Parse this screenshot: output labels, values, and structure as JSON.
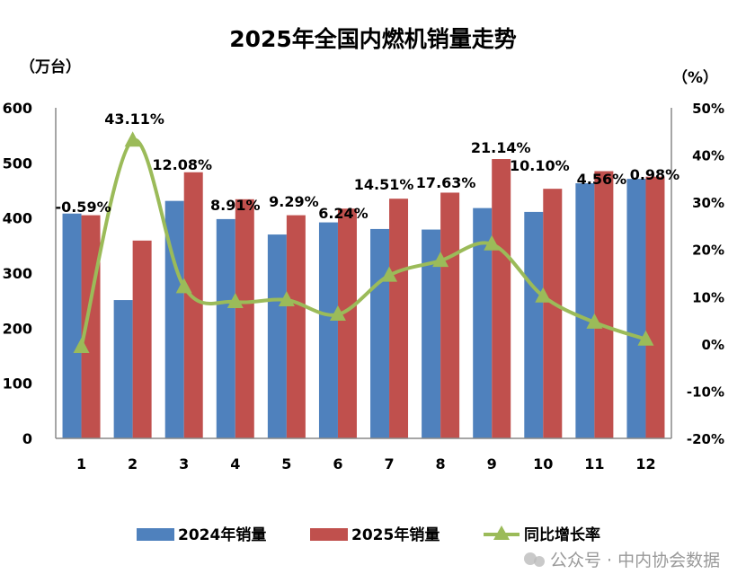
{
  "chart_data": {
    "type": "bar",
    "title": "2025年全国内燃机销量走势",
    "ylabel": "（万台）",
    "y2label": "（%）",
    "categories": [
      "1",
      "2",
      "3",
      "4",
      "5",
      "6",
      "7",
      "8",
      "9",
      "10",
      "11",
      "12"
    ],
    "ylim": [
      0,
      600
    ],
    "yticks": [
      "0",
      "100",
      "200",
      "300",
      "400",
      "500",
      "600"
    ],
    "y2lim": [
      -20,
      50
    ],
    "y2ticks": [
      "-20%",
      "-10%",
      "0%",
      "10%",
      "20%",
      "30%",
      "40%",
      "50%"
    ],
    "series": [
      {
        "name": "2024年销量",
        "type": "bar",
        "color": "#4f81bd",
        "values": [
          408,
          251,
          431,
          398,
          370,
          392,
          380,
          379,
          418,
          411,
          463,
          471
        ]
      },
      {
        "name": "2025年销量",
        "type": "bar",
        "color": "#c0504d",
        "values": [
          405,
          359,
          483,
          434,
          405,
          417,
          435,
          446,
          507,
          453,
          485,
          475
        ]
      },
      {
        "name": "同比增长率",
        "type": "line",
        "axis": "right",
        "color": "#9bbb59",
        "marker": "triangle",
        "values": [
          -0.59,
          43.11,
          12.08,
          8.91,
          9.29,
          6.24,
          14.51,
          17.63,
          21.14,
          10.1,
          4.56,
          0.98
        ],
        "labels": [
          "-0.59%",
          "43.11%",
          "12.08%",
          "8.91%",
          "9.29%",
          "6.24%",
          "14.51%",
          "17.63%",
          "21.14%",
          "10.10%",
          "4.56%",
          "0.98%"
        ]
      }
    ],
    "legend": "bottom",
    "grid": false
  },
  "watermark": "公众号 · 中内协会数据"
}
